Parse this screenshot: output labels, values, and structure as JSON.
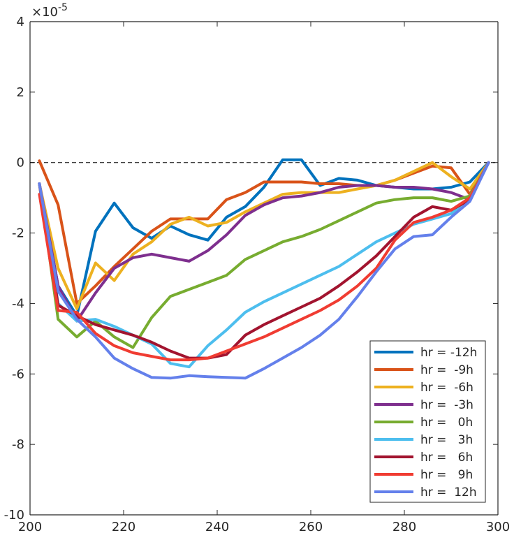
{
  "chart_data": {
    "type": "line",
    "title": "",
    "xlabel": "",
    "ylabel": "",
    "xlim": [
      200,
      300
    ],
    "ylim": [
      -10,
      4
    ],
    "y_exponent_label": "×10",
    "y_exponent_power": "-5",
    "xticks": [
      200,
      220,
      240,
      260,
      280,
      300
    ],
    "yticks": [
      -10,
      -8,
      -6,
      -4,
      -2,
      0,
      2,
      4
    ],
    "grid": false,
    "legend_position": "bottom-right",
    "reference_line": {
      "y": 0,
      "style": "dashed",
      "color": "#000000"
    },
    "series": [
      {
        "name": "hr = -12h",
        "color": "#0072BD",
        "x": [
          202,
          206,
          210,
          214,
          218,
          222,
          226,
          230,
          234,
          238,
          242,
          246,
          250,
          254,
          258,
          262,
          266,
          270,
          274,
          278,
          282,
          286,
          290,
          294,
          298
        ],
        "y": [
          -0.6,
          -3.5,
          -4.35,
          -1.95,
          -1.15,
          -1.85,
          -2.15,
          -1.8,
          -2.05,
          -2.2,
          -1.55,
          -1.25,
          -0.7,
          0.08,
          0.08,
          -0.65,
          -0.45,
          -0.5,
          -0.65,
          -0.7,
          -0.75,
          -0.75,
          -0.7,
          -0.55,
          0.0
        ]
      },
      {
        "name": "hr =  -9h",
        "color": "#D95319",
        "x": [
          202,
          206,
          210,
          214,
          218,
          222,
          226,
          230,
          234,
          238,
          242,
          246,
          250,
          254,
          258,
          262,
          266,
          270,
          274,
          278,
          282,
          286,
          290,
          294,
          298
        ],
        "y": [
          0.05,
          -1.2,
          -4.0,
          -3.5,
          -2.95,
          -2.45,
          -1.95,
          -1.6,
          -1.6,
          -1.6,
          -1.05,
          -0.85,
          -0.55,
          -0.55,
          -0.55,
          -0.6,
          -0.6,
          -0.65,
          -0.65,
          -0.5,
          -0.3,
          -0.1,
          -0.15,
          -0.9,
          0.0
        ]
      },
      {
        "name": "hr =  -6h",
        "color": "#EDB120",
        "x": [
          202,
          206,
          210,
          214,
          218,
          222,
          226,
          230,
          234,
          238,
          242,
          246,
          250,
          254,
          258,
          262,
          266,
          270,
          274,
          278,
          282,
          286,
          290,
          294,
          298
        ],
        "y": [
          -0.6,
          -3.0,
          -4.15,
          -2.85,
          -3.35,
          -2.6,
          -2.25,
          -1.75,
          -1.55,
          -1.8,
          -1.7,
          -1.4,
          -1.15,
          -0.9,
          -0.85,
          -0.85,
          -0.85,
          -0.75,
          -0.65,
          -0.5,
          -0.25,
          0.0,
          -0.4,
          -0.75,
          0.0
        ]
      },
      {
        "name": "hr =  -3h",
        "color": "#7E2F8E",
        "x": [
          202,
          206,
          210,
          214,
          218,
          222,
          226,
          230,
          234,
          238,
          242,
          246,
          250,
          254,
          258,
          262,
          266,
          270,
          274,
          278,
          282,
          286,
          290,
          294,
          298
        ],
        "y": [
          -0.6,
          -3.5,
          -4.5,
          -3.7,
          -3.0,
          -2.7,
          -2.6,
          -2.7,
          -2.8,
          -2.5,
          -2.05,
          -1.5,
          -1.2,
          -1.0,
          -0.95,
          -0.85,
          -0.7,
          -0.65,
          -0.65,
          -0.7,
          -0.7,
          -0.75,
          -0.85,
          -1.05,
          0.0
        ]
      },
      {
        "name": "hr =   0h",
        "color": "#77AC30",
        "x": [
          202,
          206,
          210,
          214,
          218,
          222,
          226,
          230,
          234,
          238,
          242,
          246,
          250,
          254,
          258,
          262,
          266,
          270,
          274,
          278,
          282,
          286,
          290,
          294,
          298
        ],
        "y": [
          -0.6,
          -4.45,
          -4.95,
          -4.5,
          -4.95,
          -5.25,
          -4.4,
          -3.8,
          -3.6,
          -3.4,
          -3.2,
          -2.75,
          -2.5,
          -2.25,
          -2.1,
          -1.9,
          -1.65,
          -1.4,
          -1.15,
          -1.05,
          -1.0,
          -1.0,
          -1.1,
          -0.95,
          0.0
        ]
      },
      {
        "name": "hr =   3h",
        "color": "#4DBEEE",
        "x": [
          202,
          206,
          210,
          214,
          218,
          222,
          226,
          230,
          234,
          238,
          242,
          246,
          250,
          254,
          258,
          262,
          266,
          270,
          274,
          278,
          282,
          286,
          290,
          294,
          298
        ],
        "y": [
          -0.6,
          -4.0,
          -4.5,
          -4.45,
          -4.65,
          -4.9,
          -5.15,
          -5.7,
          -5.8,
          -5.2,
          -4.75,
          -4.25,
          -3.95,
          -3.7,
          -3.45,
          -3.2,
          -2.95,
          -2.6,
          -2.25,
          -2.0,
          -1.75,
          -1.6,
          -1.45,
          -1.0,
          0.0
        ]
      },
      {
        "name": "hr =   6h",
        "color": "#A2142F",
        "x": [
          202,
          206,
          210,
          214,
          218,
          222,
          226,
          230,
          234,
          238,
          242,
          246,
          250,
          254,
          258,
          262,
          266,
          270,
          274,
          278,
          282,
          286,
          290,
          294,
          298
        ],
        "y": [
          -0.6,
          -4.05,
          -4.35,
          -4.6,
          -4.75,
          -4.9,
          -5.1,
          -5.35,
          -5.55,
          -5.55,
          -5.45,
          -4.9,
          -4.6,
          -4.35,
          -4.1,
          -3.85,
          -3.5,
          -3.1,
          -2.65,
          -2.1,
          -1.55,
          -1.25,
          -1.35,
          -1.05,
          0.0
        ]
      },
      {
        "name": "hr =   9h",
        "color": "#F03C32",
        "x": [
          202,
          206,
          210,
          214,
          218,
          222,
          226,
          230,
          234,
          238,
          242,
          246,
          250,
          254,
          258,
          262,
          266,
          270,
          274,
          278,
          282,
          286,
          290,
          294,
          298
        ],
        "y": [
          -0.9,
          -4.2,
          -4.25,
          -4.85,
          -5.2,
          -5.4,
          -5.5,
          -5.6,
          -5.6,
          -5.55,
          -5.35,
          -5.15,
          -4.95,
          -4.7,
          -4.45,
          -4.2,
          -3.9,
          -3.5,
          -3.0,
          -2.2,
          -1.7,
          -1.55,
          -1.35,
          -1.0,
          0.0
        ]
      },
      {
        "name": "hr =  12h",
        "color": "#6480EB",
        "x": [
          202,
          206,
          210,
          214,
          218,
          222,
          226,
          230,
          234,
          238,
          242,
          246,
          250,
          254,
          258,
          262,
          266,
          270,
          274,
          278,
          282,
          286,
          290,
          294,
          298
        ],
        "y": [
          -0.6,
          -3.65,
          -4.45,
          -4.95,
          -5.55,
          -5.85,
          -6.1,
          -6.12,
          -6.05,
          -6.08,
          -6.1,
          -6.12,
          -5.85,
          -5.55,
          -5.25,
          -4.9,
          -4.45,
          -3.8,
          -3.1,
          -2.45,
          -2.1,
          -2.05,
          -1.55,
          -1.1,
          0.0
        ]
      }
    ]
  }
}
